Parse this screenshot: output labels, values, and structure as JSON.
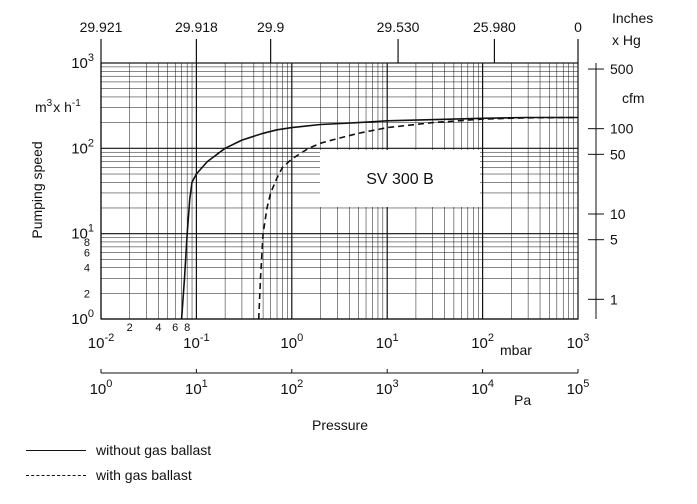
{
  "chart_data": {
    "type": "line",
    "title": "",
    "annotation": "SV 300 B",
    "ylabel": "Pumping speed",
    "yunit_base": "m",
    "yunit_exp1": "3",
    "yunit_mid": "x h",
    "yunit_exp2": "-1",
    "xlabel": "Pressure",
    "x_scale": "log",
    "y_scale": "log",
    "xlim_mbar": [
      0.01,
      1000
    ],
    "ylim_m3h": [
      1,
      1000
    ],
    "mbar_axis": {
      "unit": "mbar",
      "ticks": [
        {
          "value": 0.01,
          "base": "10",
          "exp": "-2"
        },
        {
          "value": 0.1,
          "base": "10",
          "exp": "-1"
        },
        {
          "value": 1,
          "base": "10",
          "exp": "0"
        },
        {
          "value": 10,
          "base": "10",
          "exp": "1"
        },
        {
          "value": 100,
          "base": "10",
          "exp": "2"
        },
        {
          "value": 1000,
          "base": "10",
          "exp": "3"
        }
      ],
      "minor_labels": [
        {
          "value": 0.02,
          "text": "2"
        },
        {
          "value": 0.04,
          "text": "4"
        },
        {
          "value": 0.06,
          "text": "6"
        },
        {
          "value": 0.08,
          "text": "8"
        }
      ]
    },
    "pa_axis": {
      "unit": "Pa",
      "ticks": [
        {
          "value": 1,
          "base": "10",
          "exp": "0"
        },
        {
          "value": 10,
          "base": "10",
          "exp": "1"
        },
        {
          "value": 100,
          "base": "10",
          "exp": "2"
        },
        {
          "value": 1000,
          "base": "10",
          "exp": "3"
        },
        {
          "value": 10000,
          "base": "10",
          "exp": "4"
        },
        {
          "value": 100000,
          "base": "10",
          "exp": "5"
        }
      ]
    },
    "inches_hg_axis": {
      "unit_line1": "Inches",
      "unit_line2": "x Hg",
      "ticks": [
        {
          "mbar": 0.01,
          "text": "29.921"
        },
        {
          "mbar": 0.1,
          "text": "29.918"
        },
        {
          "mbar": 0.6,
          "text": "29.9"
        },
        {
          "mbar": 13,
          "text": "29.530"
        },
        {
          "mbar": 133,
          "text": "25.980"
        },
        {
          "mbar": 1000,
          "text": "0"
        }
      ]
    },
    "y_axis": {
      "ticks": [
        {
          "value": 1,
          "base": "10",
          "exp": "0"
        },
        {
          "value": 10,
          "base": "10",
          "exp": "1"
        },
        {
          "value": 100,
          "base": "10",
          "exp": "2"
        },
        {
          "value": 1000,
          "base": "10",
          "exp": "3"
        }
      ],
      "minor_labels": [
        {
          "value": 2,
          "text": "2"
        },
        {
          "value": 4,
          "text": "4"
        },
        {
          "value": 6,
          "text": "6"
        },
        {
          "value": 8,
          "text": "8"
        }
      ]
    },
    "cfm_axis": {
      "unit": "cfm",
      "ticks": [
        {
          "m3h": 850,
          "text": "500"
        },
        {
          "m3h": 170,
          "text": "100"
        },
        {
          "m3h": 85,
          "text": "50"
        },
        {
          "m3h": 17,
          "text": "10"
        },
        {
          "m3h": 8.5,
          "text": "5"
        },
        {
          "m3h": 1.7,
          "text": "1"
        }
      ]
    },
    "series": [
      {
        "name": "without gas ballast",
        "style": "solid",
        "color": "#111111",
        "x": [
          0.07,
          0.075,
          0.08,
          0.085,
          0.09,
          0.1,
          0.13,
          0.2,
          0.3,
          0.5,
          0.7,
          1,
          2,
          5,
          10,
          50,
          100,
          300,
          1000
        ],
        "y": [
          1,
          3,
          10,
          25,
          40,
          50,
          70,
          100,
          125,
          150,
          165,
          175,
          190,
          200,
          210,
          220,
          225,
          230,
          230
        ]
      },
      {
        "name": "with gas ballast",
        "style": "dashed",
        "color": "#111111",
        "x": [
          0.45,
          0.47,
          0.5,
          0.55,
          0.6,
          0.7,
          0.8,
          1,
          1.5,
          2,
          3,
          5,
          10,
          30,
          100,
          300,
          1000
        ],
        "y": [
          1,
          3,
          10,
          20,
          30,
          45,
          60,
          75,
          100,
          115,
          130,
          150,
          175,
          200,
          220,
          228,
          230
        ]
      }
    ]
  }
}
